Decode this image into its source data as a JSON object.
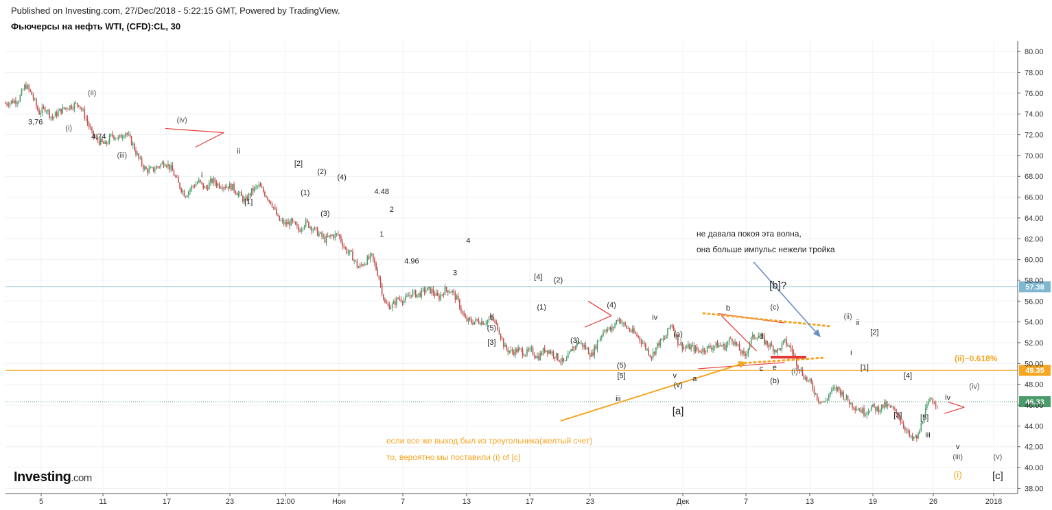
{
  "header": {
    "published": "Published on Investing.com, 27/Dec/2018 - 5:22:15 GMT, Powered by TradingView.",
    "instrument": "Фьючерсы на нефть WTI, (CFD):CL, 30"
  },
  "logo": {
    "main": "Investing",
    "suffix": ".com"
  },
  "colors": {
    "bull": "#4a9c6b",
    "bear": "#c0504d",
    "orange": "#f5a623",
    "blue_line": "#7fb7d1",
    "red": "#e53935",
    "arrow_blue": "#6a8fc7"
  },
  "chart_data": {
    "type": "candlestick",
    "symbol": "CL",
    "timeframe": "30",
    "ylim": [
      37.5,
      81
    ],
    "y_ticks": [
      "38.00",
      "40.00",
      "42.00",
      "44.00",
      "46.00",
      "48.00",
      "50.00",
      "52.00",
      "54.00",
      "56.00",
      "58.00",
      "60.00",
      "62.00",
      "64.00",
      "66.00",
      "68.00",
      "70.00",
      "72.00",
      "74.00",
      "76.00",
      "78.00",
      "80.00"
    ],
    "x_ticks": [
      "5",
      "11",
      "17",
      "23",
      "12:00",
      "Ноя",
      "7",
      "13",
      "17",
      "23",
      "Дек",
      "7",
      "13",
      "19",
      "26",
      "2018"
    ],
    "price_path": [
      [
        0,
        75.0
      ],
      [
        2,
        75.4
      ],
      [
        3,
        76.8
      ],
      [
        4,
        75.8
      ],
      [
        5,
        74.1
      ],
      [
        6,
        74.6
      ],
      [
        7,
        73.6
      ],
      [
        8,
        74.2
      ],
      [
        9,
        74.6
      ],
      [
        10,
        74.8
      ],
      [
        11,
        75.0
      ],
      [
        12,
        73.7
      ],
      [
        13,
        72.0
      ],
      [
        14,
        71.4
      ],
      [
        15,
        71.0
      ],
      [
        16,
        72.0
      ],
      [
        17,
        71.6
      ],
      [
        18,
        72.3
      ],
      [
        19,
        71.2
      ],
      [
        20,
        69.7
      ],
      [
        21,
        68.6
      ],
      [
        22,
        68.6
      ],
      [
        23,
        69.0
      ],
      [
        24,
        69.4
      ],
      [
        25,
        68.6
      ],
      [
        26,
        67.2
      ],
      [
        27,
        66.2
      ],
      [
        28,
        67.0
      ],
      [
        29,
        67.5
      ],
      [
        30,
        66.8
      ],
      [
        31,
        67.6
      ],
      [
        32,
        67.2
      ],
      [
        33,
        67.1
      ],
      [
        34,
        67.0
      ],
      [
        35,
        66.3
      ],
      [
        36,
        65.6
      ],
      [
        37,
        66.6
      ],
      [
        38,
        67.1
      ],
      [
        39,
        66.3
      ],
      [
        40,
        65.4
      ],
      [
        41,
        63.8
      ],
      [
        42,
        63.4
      ],
      [
        43,
        63.6
      ],
      [
        44,
        62.8
      ],
      [
        45,
        63.6
      ],
      [
        46,
        63.1
      ],
      [
        47,
        62.5
      ],
      [
        48,
        61.9
      ],
      [
        49,
        62.3
      ],
      [
        50,
        62.4
      ],
      [
        51,
        61.0
      ],
      [
        52,
        60.4
      ],
      [
        53,
        59.2
      ],
      [
        54,
        59.8
      ],
      [
        55,
        60.3
      ],
      [
        56,
        58.5
      ],
      [
        57,
        55.7
      ],
      [
        58,
        55.5
      ],
      [
        59,
        56.3
      ],
      [
        60,
        56.1
      ],
      [
        61,
        56.8
      ],
      [
        62,
        56.6
      ],
      [
        63,
        57.1
      ],
      [
        64,
        57.0
      ],
      [
        65,
        56.3
      ],
      [
        66,
        57.1
      ],
      [
        67,
        57.0
      ],
      [
        68,
        55.9
      ],
      [
        69,
        54.2
      ],
      [
        70,
        54.0
      ],
      [
        71,
        54.1
      ],
      [
        72,
        54.0
      ],
      [
        73,
        54.4
      ],
      [
        74,
        53.4
      ],
      [
        75,
        51.5
      ],
      [
        76,
        51.1
      ],
      [
        77,
        51.3
      ],
      [
        78,
        51.0
      ],
      [
        79,
        51.2
      ],
      [
        80,
        50.6
      ],
      [
        81,
        51.4
      ],
      [
        82,
        51.1
      ],
      [
        83,
        50.5
      ],
      [
        84,
        50.0
      ],
      [
        85,
        51.3
      ],
      [
        86,
        52.1
      ],
      [
        87,
        51.6
      ],
      [
        88,
        50.8
      ],
      [
        89,
        52.2
      ],
      [
        90,
        53.4
      ],
      [
        91,
        53.2
      ],
      [
        92,
        54.4
      ],
      [
        93,
        53.6
      ],
      [
        94,
        53.1
      ],
      [
        95,
        52.6
      ],
      [
        96,
        51.7
      ],
      [
        97,
        50.7
      ],
      [
        98,
        51.9
      ],
      [
        99,
        52.4
      ],
      [
        100,
        53.9
      ],
      [
        101,
        52.1
      ],
      [
        102,
        51.5
      ],
      [
        103,
        51.6
      ],
      [
        104,
        51.2
      ],
      [
        105,
        51.4
      ],
      [
        106,
        51.6
      ],
      [
        107,
        51.8
      ],
      [
        108,
        51.6
      ],
      [
        109,
        52.5
      ],
      [
        110,
        51.5
      ],
      [
        111,
        50.6
      ],
      [
        112,
        52.4
      ],
      [
        113,
        52.8
      ],
      [
        114,
        52.1
      ],
      [
        115,
        51.6
      ],
      [
        116,
        51.2
      ],
      [
        117,
        52.1
      ],
      [
        118,
        51.4
      ],
      [
        119,
        49.8
      ],
      [
        120,
        48.7
      ],
      [
        121,
        48.0
      ],
      [
        122,
        46.6
      ],
      [
        123,
        46.2
      ],
      [
        124,
        47.4
      ],
      [
        125,
        47.6
      ],
      [
        126,
        46.8
      ],
      [
        127,
        46.1
      ],
      [
        128,
        45.7
      ],
      [
        129,
        45.3
      ],
      [
        130,
        45.8
      ],
      [
        131,
        45.6
      ],
      [
        132,
        46.0
      ],
      [
        133,
        45.7
      ],
      [
        134,
        45.1
      ],
      [
        135,
        43.9
      ],
      [
        136,
        42.7
      ],
      [
        137,
        42.9
      ],
      [
        138,
        45.3
      ],
      [
        139,
        46.6
      ],
      [
        140,
        46.1
      ]
    ],
    "last_price": "46.33",
    "horizontal_lines": [
      {
        "price": 57.38,
        "label": "57.38",
        "color": "#7fb7d1",
        "style": "solid"
      },
      {
        "price": 49.35,
        "label": "49.35",
        "color": "#f5a623",
        "style": "solid"
      },
      {
        "price": 46.33,
        "label": "46.33",
        "color": "#4a9c6b",
        "style": "dotted"
      }
    ],
    "wave_labels": [
      {
        "text": "3,76",
        "t": 4.5,
        "p": 73.0,
        "color": "#222"
      },
      {
        "text": "(i)",
        "t": 9.5,
        "p": 72.4,
        "color": "#555"
      },
      {
        "text": "(ii)",
        "t": 13,
        "p": 75.8,
        "color": "#555"
      },
      {
        "text": "4,74",
        "t": 14,
        "p": 71.6,
        "color": "#222"
      },
      {
        "text": "(iii)",
        "t": 17.5,
        "p": 69.8,
        "color": "#555"
      },
      {
        "text": "(iv)",
        "t": 26.5,
        "p": 73.2,
        "color": "#555"
      },
      {
        "text": "ii",
        "t": 35,
        "p": 70.2,
        "color": "#222"
      },
      {
        "text": "i",
        "t": 29.5,
        "p": 67.9,
        "color": "#222"
      },
      {
        "text": "[1]",
        "t": 36.5,
        "p": 65.3,
        "color": "#222"
      },
      {
        "text": "[2]",
        "t": 44,
        "p": 69.0,
        "color": "#222"
      },
      {
        "text": "(1)",
        "t": 45,
        "p": 66.2,
        "color": "#222"
      },
      {
        "text": "(2)",
        "t": 47.5,
        "p": 68.2,
        "color": "#222"
      },
      {
        "text": "(3)",
        "t": 48,
        "p": 64.2,
        "color": "#222"
      },
      {
        "text": "(4)",
        "t": 50.5,
        "p": 67.7,
        "color": "#222"
      },
      {
        "text": "4.48",
        "t": 56.5,
        "p": 66.3,
        "color": "#222"
      },
      {
        "text": "2",
        "t": 58,
        "p": 64.6,
        "color": "#222"
      },
      {
        "text": "1",
        "t": 56.5,
        "p": 62.2,
        "color": "#222"
      },
      {
        "text": "4.96",
        "t": 61,
        "p": 59.6,
        "color": "#222"
      },
      {
        "text": "4",
        "t": 69.5,
        "p": 61.6,
        "color": "#222"
      },
      {
        "text": "3",
        "t": 67.5,
        "p": 58.5,
        "color": "#222"
      },
      {
        "text": "5",
        "t": 73,
        "p": 54.2,
        "color": "#222"
      },
      {
        "text": "(5)",
        "t": 73,
        "p": 53.2,
        "color": "#222"
      },
      {
        "text": "[3]",
        "t": 73,
        "p": 51.8,
        "color": "#222"
      },
      {
        "text": "[4]",
        "t": 80,
        "p": 58.1,
        "color": "#222"
      },
      {
        "text": "(1)",
        "t": 80.5,
        "p": 55.2,
        "color": "#222"
      },
      {
        "text": "(2)",
        "t": 83,
        "p": 57.8,
        "color": "#222"
      },
      {
        "text": "(3)",
        "t": 85.5,
        "p": 52.0,
        "color": "#222"
      },
      {
        "text": "(4)",
        "t": 91,
        "p": 55.4,
        "color": "#222"
      },
      {
        "text": "(5)",
        "t": 92.5,
        "p": 49.6,
        "color": "#222"
      },
      {
        "text": "[5]",
        "t": 92.5,
        "p": 48.6,
        "color": "#222"
      },
      {
        "text": "iii",
        "t": 92,
        "p": 46.4,
        "color": "#222"
      },
      {
        "text": "iv",
        "t": 97.5,
        "p": 54.2,
        "color": "#222"
      },
      {
        "text": "(a)",
        "t": 101,
        "p": 52.6,
        "color": "#222"
      },
      {
        "text": "v",
        "t": 100.5,
        "p": 48.6,
        "color": "#222"
      },
      {
        "text": "(v)",
        "t": 101,
        "p": 47.7,
        "color": "#222"
      },
      {
        "text": "a",
        "t": 103.5,
        "p": 48.3,
        "color": "#222"
      },
      {
        "text": "[a]",
        "t": 101,
        "p": 45.1,
        "color": "#222",
        "size": 15
      },
      {
        "text": "b",
        "t": 108.5,
        "p": 55.1,
        "color": "#222"
      },
      {
        "text": "d",
        "t": 113.5,
        "p": 52.4,
        "color": "#222"
      },
      {
        "text": "c",
        "t": 113.5,
        "p": 49.3,
        "color": "#222"
      },
      {
        "text": "e",
        "t": 115.5,
        "p": 49.4,
        "color": "#222"
      },
      {
        "text": "(b)",
        "t": 115.5,
        "p": 48.1,
        "color": "#222"
      },
      {
        "text": "(i)",
        "t": 118.5,
        "p": 49.0,
        "color": "#555"
      },
      {
        "text": "[b]?",
        "t": 116,
        "p": 57.2,
        "color": "#222",
        "size": 15
      },
      {
        "text": "(c)",
        "t": 115.5,
        "p": 55.2,
        "color": "#222"
      },
      {
        "text": "(ii)",
        "t": 126.5,
        "p": 54.3,
        "color": "#555"
      },
      {
        "text": "ii",
        "t": 128,
        "p": 53.7,
        "color": "#222"
      },
      {
        "text": "i",
        "t": 127,
        "p": 50.8,
        "color": "#222"
      },
      {
        "text": "[2]",
        "t": 130.5,
        "p": 52.8,
        "color": "#222"
      },
      {
        "text": "[1]",
        "t": 129,
        "p": 49.4,
        "color": "#222"
      },
      {
        "text": "[4]",
        "t": 135.5,
        "p": 48.6,
        "color": "#222"
      },
      {
        "text": "[3]",
        "t": 134,
        "p": 44.8,
        "color": "#222"
      },
      {
        "text": "[5]",
        "t": 138,
        "p": 44.6,
        "color": "#222"
      },
      {
        "text": "iii",
        "t": 138.5,
        "p": 42.9,
        "color": "#222"
      },
      {
        "text": "iv",
        "t": 141.5,
        "p": 46.5,
        "color": "#222"
      },
      {
        "text": "(iv)",
        "t": 145.5,
        "p": 47.6,
        "color": "#555"
      },
      {
        "text": "v",
        "t": 143,
        "p": 41.8,
        "color": "#222"
      },
      {
        "text": "(iii)",
        "t": 143,
        "p": 40.8,
        "color": "#555"
      },
      {
        "text": "(i)",
        "t": 143,
        "p": 39.0,
        "color": "#f5a623",
        "size": 14
      },
      {
        "text": "(v)",
        "t": 149,
        "p": 40.8,
        "color": "#555"
      },
      {
        "text": "[c]",
        "t": 149,
        "p": 38.9,
        "color": "#222",
        "size": 15
      }
    ],
    "annotations": {
      "blue_note_line1": "не давала покоя эта волна,",
      "blue_note_line2": "она больше импульс нежели тройка",
      "orange_note_line1": "если все же выход был из треугольника(желтый счет)",
      "orange_note_line2": "то, вероятно мы поставили (i) of [c]",
      "fib_label": "(ii)~0.618%"
    }
  }
}
